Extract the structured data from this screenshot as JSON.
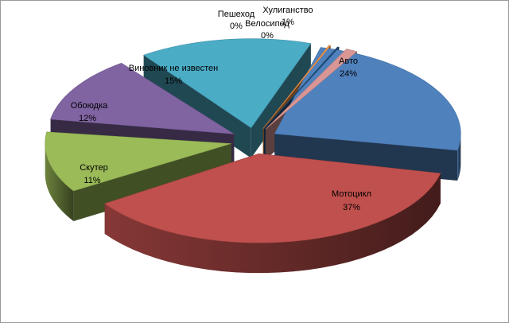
{
  "chart_data": {
    "type": "pie",
    "style": "3d-exploded",
    "title": "",
    "legend": "none",
    "slices": [
      {
        "label": "Авто",
        "value": 24,
        "value_label": "24%",
        "color": "#4f81bd"
      },
      {
        "label": "Мотоцикл",
        "value": 37,
        "value_label": "37%",
        "color": "#c0504d"
      },
      {
        "label": "Скутер",
        "value": 11,
        "value_label": "11%",
        "color": "#9bbb59"
      },
      {
        "label": "Обоюдка",
        "value": 12,
        "value_label": "12%",
        "color": "#8064a2"
      },
      {
        "label": "Виновник не известен",
        "value": 15,
        "value_label": "15%",
        "color": "#4bacc6"
      },
      {
        "label": "Пешеход",
        "value": 0,
        "value_label": "0%",
        "color": "#f79646"
      },
      {
        "label": "Велосипед",
        "value": 0,
        "value_label": "0%",
        "color": "#1f4e79"
      },
      {
        "label": "Хулиганство",
        "value": 1,
        "value_label": "1%",
        "color": "#d99694"
      }
    ]
  }
}
